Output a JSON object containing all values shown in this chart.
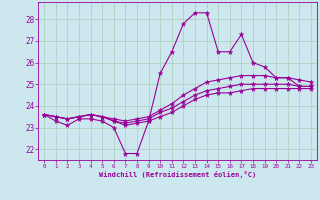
{
  "xlabel": "Windchill (Refroidissement éolien,°C)",
  "x": [
    0,
    1,
    2,
    3,
    4,
    5,
    6,
    7,
    8,
    9,
    10,
    11,
    12,
    13,
    14,
    15,
    16,
    17,
    18,
    19,
    20,
    21,
    22,
    23
  ],
  "line1": [
    23.6,
    23.3,
    23.1,
    23.4,
    23.4,
    23.3,
    23.0,
    21.8,
    21.8,
    23.3,
    25.5,
    26.5,
    27.8,
    28.3,
    28.3,
    26.5,
    26.5,
    27.3,
    26.0,
    25.8,
    25.3,
    25.3,
    24.9,
    24.9
  ],
  "line2": [
    23.6,
    23.5,
    23.4,
    23.5,
    23.6,
    23.5,
    23.4,
    23.3,
    23.4,
    23.5,
    23.8,
    24.1,
    24.5,
    24.8,
    25.1,
    25.2,
    25.3,
    25.4,
    25.4,
    25.4,
    25.3,
    25.3,
    25.2,
    25.1
  ],
  "line3": [
    23.6,
    23.5,
    23.4,
    23.5,
    23.6,
    23.5,
    23.3,
    23.2,
    23.3,
    23.4,
    23.7,
    23.9,
    24.2,
    24.5,
    24.7,
    24.8,
    24.9,
    25.0,
    25.0,
    25.0,
    25.0,
    25.0,
    24.9,
    24.9
  ],
  "line4": [
    23.6,
    23.5,
    23.4,
    23.5,
    23.6,
    23.5,
    23.3,
    23.1,
    23.2,
    23.3,
    23.5,
    23.7,
    24.0,
    24.3,
    24.5,
    24.6,
    24.6,
    24.7,
    24.8,
    24.8,
    24.8,
    24.8,
    24.8,
    24.8
  ],
  "ylim": [
    21.5,
    28.8
  ],
  "yticks": [
    22,
    23,
    24,
    25,
    26,
    27,
    28
  ],
  "color": "#990099",
  "bg_color": "#cce8ee",
  "grid_color": "#aaccbb",
  "markersize": 2.0,
  "linewidth": 0.8
}
